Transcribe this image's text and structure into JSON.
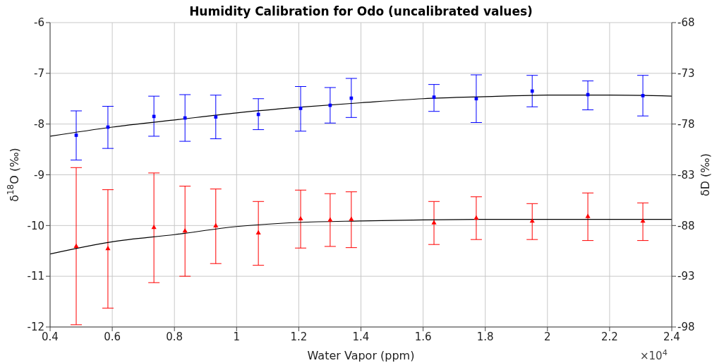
{
  "chart_data": {
    "type": "scatter",
    "title": "Humidity Calibration for Odo (uncalibrated values)",
    "xlabel": "Water Vapor (ppm)",
    "ylabel": "δ$^{18}$O (‰)",
    "y2label": "δD (‰)",
    "annotations": [
      "×10$^{4}$"
    ],
    "x": [
      0.484,
      0.586,
      0.734,
      0.834,
      0.933,
      1.07,
      1.206,
      1.301,
      1.369,
      1.635,
      1.771,
      1.951,
      2.13,
      2.307
    ],
    "series": [
      {
        "color": "#0000ff",
        "marker": "square",
        "values": [
          -8.22,
          -8.06,
          -7.85,
          -7.88,
          -7.86,
          -7.81,
          -7.69,
          -7.63,
          -7.49,
          -7.47,
          -7.5,
          -7.35,
          -7.42,
          -7.44
        ],
        "errors": [
          [
            -8.71,
            -7.74
          ],
          [
            -8.48,
            -7.65
          ],
          [
            -8.24,
            -7.45
          ],
          [
            -8.34,
            -7.42
          ],
          [
            -8.29,
            -7.43
          ],
          [
            -8.11,
            -7.5
          ],
          [
            -8.14,
            -7.26
          ],
          [
            -7.98,
            -7.28
          ],
          [
            -7.87,
            -7.1
          ],
          [
            -7.75,
            -7.22
          ],
          [
            -7.97,
            -7.03
          ],
          [
            -7.66,
            -7.04
          ],
          [
            -7.72,
            -7.15
          ],
          [
            -7.84,
            -7.04
          ]
        ]
      },
      {
        "type": "scatter",
        "axis": "y2",
        "color": "#ff0000",
        "marker": "triangle",
        "values": [
          -90.06,
          -90.29,
          -88.2,
          -88.55,
          -88.04,
          -88.74,
          -87.35,
          -87.46,
          -87.39,
          -87.74,
          -87.28,
          -87.58,
          -87.12,
          -87.58
        ],
        "errors": [
          [
            -97.78,
            -82.29
          ],
          [
            -96.14,
            -84.47
          ],
          [
            -93.63,
            -82.82
          ],
          [
            -93.0,
            -84.12
          ],
          [
            -91.75,
            -84.4
          ],
          [
            -91.92,
            -85.63
          ],
          [
            -90.22,
            -84.51
          ],
          [
            -90.06,
            -84.86
          ],
          [
            -90.18,
            -84.68
          ],
          [
            -89.87,
            -85.63
          ],
          [
            -89.38,
            -85.17
          ],
          [
            -89.38,
            -85.84
          ],
          [
            -89.48,
            -84.79
          ],
          [
            -89.48,
            -85.77
          ]
        ]
      },
      {
        "type": "line",
        "color": "#000000",
        "marker": "none",
        "x": [
          0.4,
          0.6,
          0.8,
          1.0,
          1.2,
          1.4,
          1.6,
          1.8,
          2.0,
          2.2,
          2.4
        ],
        "values": [
          -8.24,
          -8.06,
          -7.92,
          -7.78,
          -7.67,
          -7.58,
          -7.5,
          -7.46,
          -7.43,
          -7.43,
          -7.45
        ]
      },
      {
        "type": "line",
        "axis": "y2",
        "color": "#000000",
        "marker": "none",
        "x": [
          0.4,
          0.6,
          0.8,
          1.0,
          1.2,
          1.4,
          1.6,
          1.8,
          2.0,
          2.2,
          2.4
        ],
        "values": [
          -90.8,
          -89.6,
          -88.9,
          -88.1,
          -87.7,
          -87.55,
          -87.45,
          -87.4,
          -87.4,
          -87.4,
          -87.4
        ]
      }
    ],
    "xlim": [
      0.4,
      2.4
    ],
    "xticks": [
      0.4,
      0.6,
      0.8,
      1,
      1.2,
      1.4,
      1.6,
      1.8,
      2,
      2.2,
      2.4
    ],
    "ylim": [
      -12,
      -6
    ],
    "yticks": [
      -12,
      -11,
      -10,
      -9,
      -8,
      -7,
      -6
    ],
    "y2lim": [
      -98,
      -68
    ],
    "y2ticks": [
      -98,
      -93,
      -88,
      -83,
      -78,
      -73,
      -68
    ],
    "grid": true
  }
}
